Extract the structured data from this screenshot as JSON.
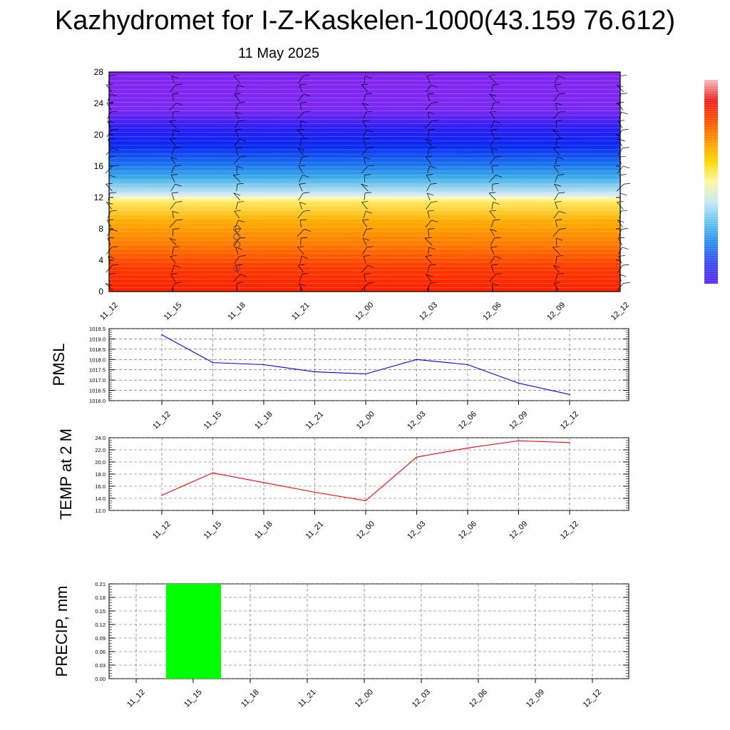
{
  "title": "Kazhydromet for I-Z-Kaskelen-1000(43.159 76.612)",
  "subtitle": "11 May 2025",
  "chart_data": [
    {
      "type": "heatmap",
      "x": [
        "11_12",
        "11_15",
        "11_18",
        "11_21",
        "12_00",
        "12_03",
        "12_06",
        "12_09",
        "12_12"
      ],
      "y_ticks": [
        "0",
        "4",
        "8",
        "12",
        "16",
        "20",
        "24",
        "28"
      ],
      "ylim": [
        0,
        28
      ],
      "color_stops": [
        {
          "y": 0,
          "color": "#ff2000"
        },
        {
          "y": 3,
          "color": "#ff3800"
        },
        {
          "y": 6,
          "color": "#ff7a00"
        },
        {
          "y": 9,
          "color": "#ffae00"
        },
        {
          "y": 11.4,
          "color": "#ffe860"
        },
        {
          "y": 11.9,
          "color": "#fff8b0"
        },
        {
          "y": 12.3,
          "color": "#d8ecf4"
        },
        {
          "y": 13.2,
          "color": "#9ad4f0"
        },
        {
          "y": 14.6,
          "color": "#3aaae8"
        },
        {
          "y": 16.3,
          "color": "#1a70ee"
        },
        {
          "y": 18.6,
          "color": "#0a28f2"
        },
        {
          "y": 20.8,
          "color": "#2a1ef4"
        },
        {
          "y": 23.2,
          "color": "#7a28f2"
        },
        {
          "y": 28,
          "color": "#8424f0"
        }
      ],
      "colorbar": {
        "colors": [
          "#f2c0c0",
          "#ee2020",
          "#ff5000",
          "#ff9a00",
          "#ffd600",
          "#fff8a0",
          "#c6e8f6",
          "#60c4f0",
          "#2a8cec",
          "#3a4af0",
          "#5828f0"
        ]
      }
    },
    {
      "type": "line",
      "ylabel": "PMSL",
      "x": [
        "11_12",
        "11_15",
        "11_18",
        "11_21",
        "12_00",
        "12_03",
        "12_06",
        "12_09",
        "12_12"
      ],
      "values": [
        1019.2,
        1017.85,
        1017.75,
        1017.4,
        1017.3,
        1018.0,
        1017.75,
        1016.85,
        1016.3
      ],
      "ylim": [
        1016.0,
        1019.5
      ],
      "y_ticks": [
        "1016.0",
        "1016.5",
        "1017.0",
        "1017.5",
        "1018.0",
        "1018.5",
        "1019.0",
        "1019.5"
      ],
      "color": "#0000ff",
      "grid": true
    },
    {
      "type": "line",
      "ylabel": "TEMP at 2 M",
      "x": [
        "11_12",
        "11_15",
        "11_18",
        "11_21",
        "12_00",
        "12_03",
        "12_06",
        "12_09",
        "12_12"
      ],
      "values": [
        14.5,
        18.2,
        16.6,
        15.0,
        13.6,
        20.8,
        22.3,
        23.5,
        23.2
      ],
      "ylim": [
        12.0,
        24.0
      ],
      "y_ticks": [
        "12.0",
        "14.0",
        "16.0",
        "18.0",
        "20.0",
        "22.0",
        "24.0"
      ],
      "color": "#ff0000",
      "grid": true
    },
    {
      "type": "bar",
      "ylabel": "PRECIP, mm",
      "x": [
        "11_12",
        "11_15",
        "11_18",
        "11_21",
        "12_00",
        "12_03",
        "12_06",
        "12_09",
        "12_12"
      ],
      "values": [
        0,
        0.21,
        0,
        0,
        0,
        0,
        0,
        0,
        0
      ],
      "ylim": [
        0,
        0.21
      ],
      "y_ticks": [
        "0.00",
        "0.03",
        "0.06",
        "0.09",
        "0.12",
        "0.15",
        "0.18",
        "0.21"
      ],
      "color": "#00ff00",
      "grid": true
    }
  ]
}
